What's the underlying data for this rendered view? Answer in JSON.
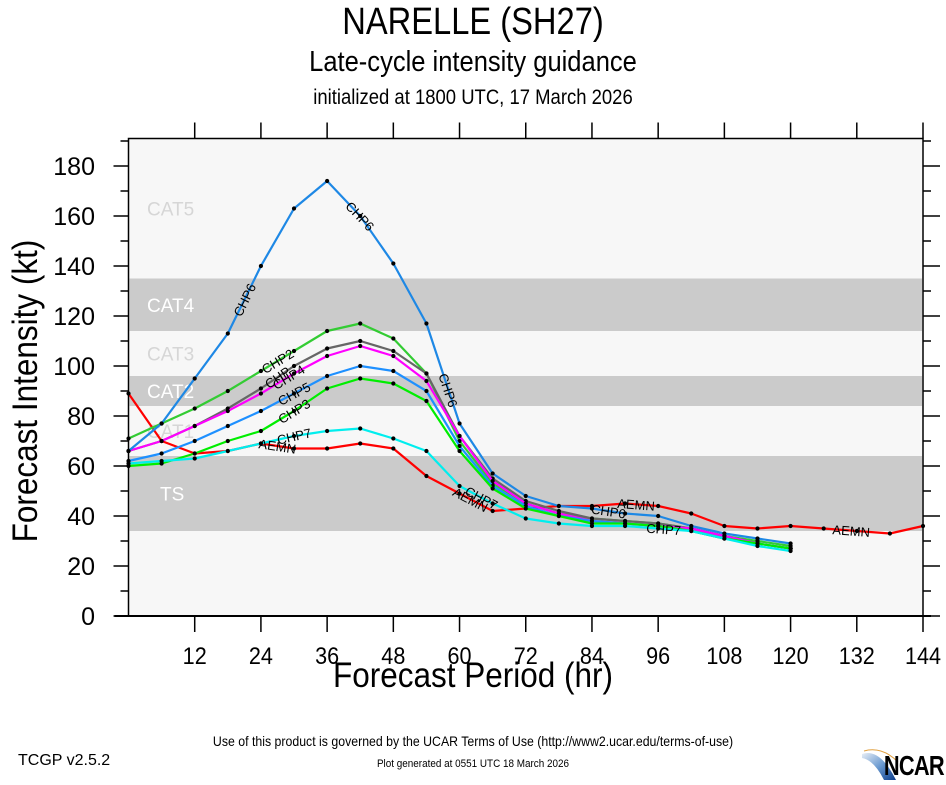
{
  "header": {
    "title": "NARELLE (SH27)",
    "subtitle": "Late-cycle intensity guidance",
    "initialized": "initialized at 1800 UTC, 17 March 2026"
  },
  "footer": {
    "terms": "Use of this product is governed by the UCAR Terms of Use (http://www2.ucar.edu/terms-of-use)",
    "version": "TCGP v2.5.2",
    "generated": "Plot generated at 0551 UTC   18 March 2026",
    "logo_text": "NCAR"
  },
  "chart_data": {
    "type": "line",
    "title": "NARELLE (SH27)",
    "xlabel": "Forecast Period (hr)",
    "ylabel": "Forecast Intensity (kt)",
    "xlim": [
      0,
      144
    ],
    "ylim": [
      0,
      191
    ],
    "xticks": [
      12,
      24,
      36,
      48,
      60,
      72,
      84,
      96,
      108,
      120,
      132,
      144
    ],
    "yticks": [
      0,
      20,
      40,
      60,
      80,
      100,
      120,
      140,
      160,
      180
    ],
    "bands": [
      {
        "label": "TS",
        "min": 34,
        "max": 64,
        "shaded": true
      },
      {
        "label": "CAT1",
        "min": 64,
        "max": 84,
        "shaded": false
      },
      {
        "label": "CAT2",
        "min": 84,
        "max": 96,
        "shaded": true
      },
      {
        "label": "CAT3",
        "min": 96,
        "max": 114,
        "shaded": false
      },
      {
        "label": "CAT4",
        "min": 114,
        "max": 135,
        "shaded": true
      },
      {
        "label": "CAT5",
        "min": 135,
        "max": 191,
        "shaded": false
      }
    ],
    "colors": {
      "plot_bg": "#f7f7f7",
      "band_shade": "#cbcbcb",
      "band_label_light": "#d6d6d6",
      "band_label_dark": "#ffffff"
    },
    "series": [
      {
        "name": "AEMN",
        "color": "#ff0000",
        "x": [
          0,
          6,
          12,
          18,
          24,
          30,
          36,
          42,
          48,
          54,
          60,
          66,
          72,
          78,
          84,
          90,
          96,
          102,
          108,
          114,
          120,
          126,
          132,
          138,
          144
        ],
        "values": [
          89,
          70,
          65,
          66,
          69,
          67,
          67,
          69,
          67,
          56,
          49,
          42,
          43,
          44,
          44,
          45,
          44,
          41,
          36,
          35,
          36,
          35,
          34,
          33,
          36
        ],
        "labels_at": [
          27,
          62,
          92,
          131
        ]
      },
      {
        "name": "CHP2",
        "color": "#33cc33",
        "x": [
          0,
          6,
          12,
          18,
          24,
          30,
          36,
          42,
          48,
          54,
          60,
          66,
          72,
          78,
          84,
          90,
          96,
          102,
          108,
          114,
          120
        ],
        "values": [
          71,
          77,
          83,
          90,
          98,
          106,
          114,
          117,
          111,
          97,
          70,
          53,
          45,
          41,
          39,
          38,
          37,
          35,
          32,
          30,
          28
        ],
        "labels_at": [
          27
        ]
      },
      {
        "name": "CHP",
        "color": "#666666",
        "x": [
          0,
          6,
          12,
          18,
          24,
          30,
          36,
          42,
          48,
          54,
          60,
          66,
          72,
          78,
          84,
          90,
          96,
          102,
          108,
          114,
          120
        ],
        "values": [
          66,
          70,
          76,
          83,
          91,
          100,
          107,
          110,
          106,
          97,
          72,
          55,
          46,
          42,
          39,
          38,
          37,
          35,
          32,
          29,
          27
        ],
        "labels_at": [
          27
        ]
      },
      {
        "name": "CHP4",
        "color": "#ff00ff",
        "x": [
          0,
          6,
          12,
          18,
          24,
          30,
          36,
          42,
          48,
          54,
          60,
          66,
          72,
          78,
          84,
          90,
          96,
          102,
          108,
          114,
          120
        ],
        "values": [
          66,
          70,
          76,
          82,
          89,
          97,
          104,
          108,
          104,
          94,
          72,
          54,
          45,
          41,
          38,
          37,
          36,
          35,
          32,
          29,
          27
        ],
        "labels_at": [
          29
        ]
      },
      {
        "name": "CHP5",
        "color": "#1e90ff",
        "x": [
          0,
          6,
          12,
          18,
          24,
          30,
          36,
          42,
          48,
          54,
          60,
          66,
          72,
          78,
          84,
          90,
          96,
          102,
          108,
          114,
          120
        ],
        "values": [
          62,
          65,
          70,
          76,
          82,
          89,
          96,
          100,
          98,
          90,
          68,
          52,
          44,
          40,
          38,
          37,
          36,
          34,
          31,
          29,
          27
        ],
        "labels_at": [
          30
        ]
      },
      {
        "name": "CHP3",
        "color": "#00ee00",
        "x": [
          0,
          6,
          12,
          18,
          24,
          30,
          36,
          42,
          48,
          54,
          60,
          66,
          72,
          78,
          84,
          90,
          96,
          102,
          108,
          114,
          120
        ],
        "values": [
          60,
          61,
          65,
          70,
          74,
          82,
          91,
          95,
          93,
          86,
          66,
          51,
          43,
          40,
          37,
          37,
          36,
          34,
          31,
          29,
          27
        ],
        "labels_at": [
          30
        ]
      },
      {
        "name": "CHP6",
        "color": "#1e88e5",
        "x": [
          0,
          6,
          12,
          18,
          24,
          30,
          36,
          42,
          48,
          54,
          60,
          66,
          72,
          78,
          84,
          90,
          96,
          102,
          108,
          114,
          120
        ],
        "values": [
          66,
          77,
          95,
          113,
          140,
          163,
          174,
          160,
          141,
          117,
          77,
          57,
          48,
          44,
          43,
          41,
          40,
          36,
          33,
          31,
          29
        ],
        "labels_at": [
          21,
          42,
          58,
          87
        ]
      },
      {
        "name": "CHP7",
        "color": "#00eeee",
        "x": [
          0,
          6,
          12,
          18,
          24,
          30,
          36,
          42,
          48,
          54,
          60,
          66,
          72,
          78,
          84,
          90,
          96,
          102,
          108,
          114,
          120
        ],
        "values": [
          61,
          62,
          63,
          66,
          69,
          72,
          74,
          75,
          71,
          66,
          52,
          45,
          39,
          37,
          36,
          36,
          35,
          34,
          31,
          28,
          26
        ],
        "labels_at": [
          30,
          64,
          97
        ]
      }
    ]
  }
}
